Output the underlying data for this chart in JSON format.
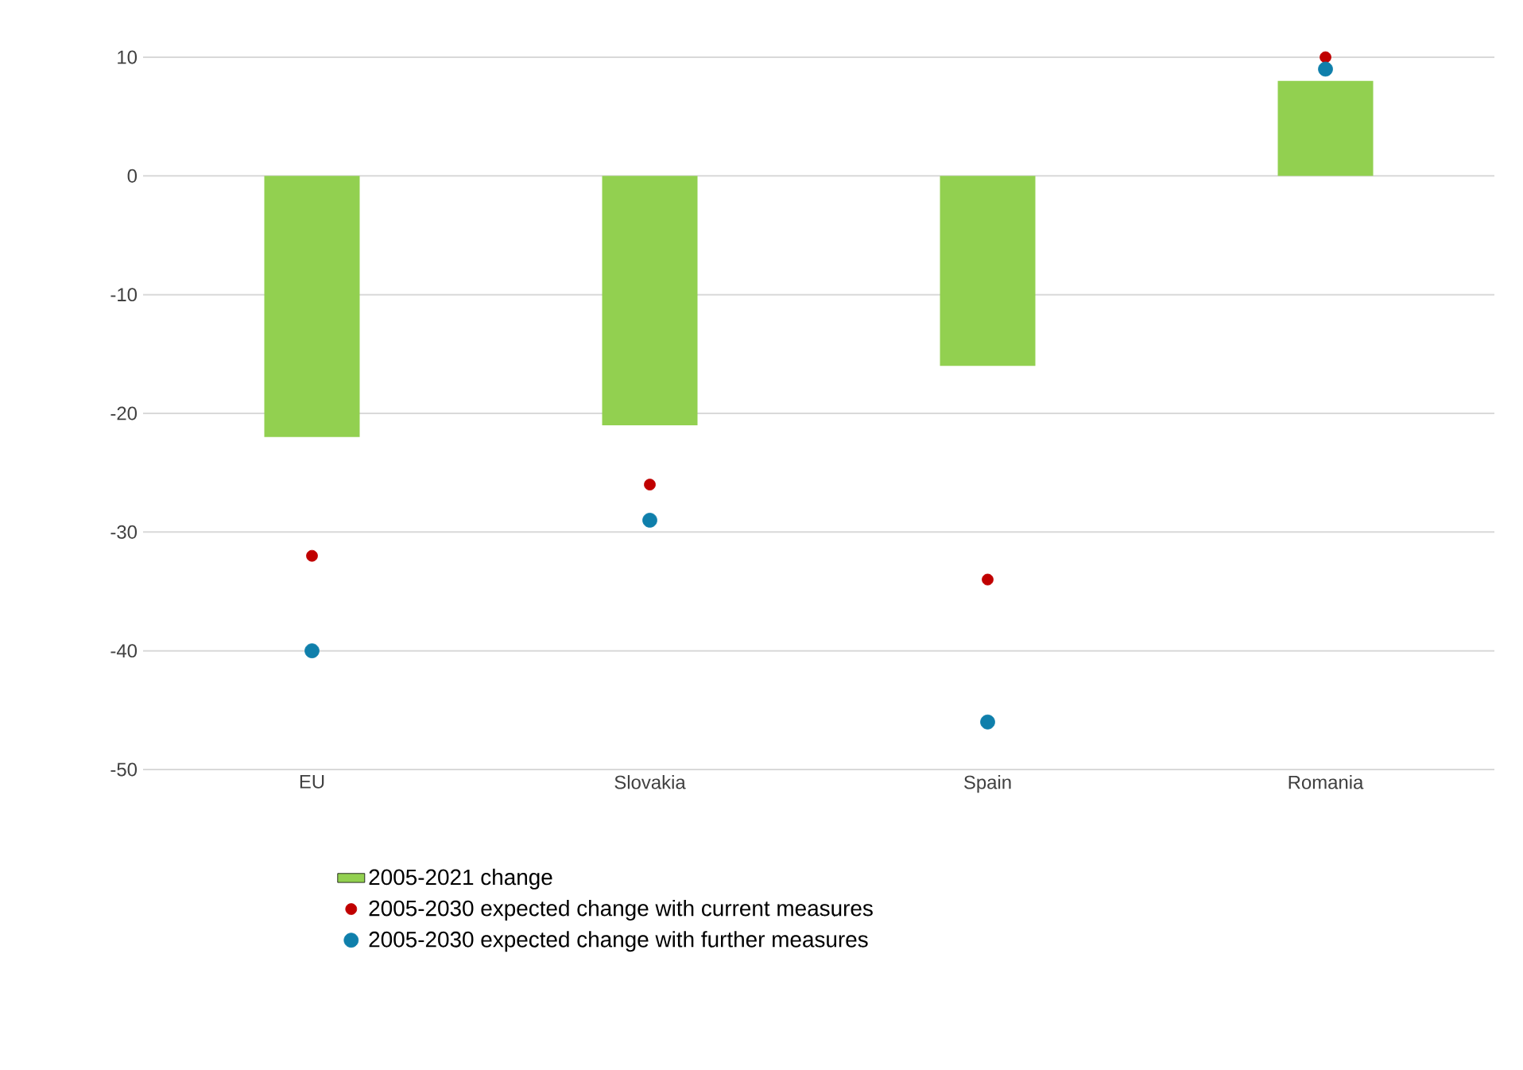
{
  "chart_data": {
    "type": "bar",
    "categories": [
      "EU",
      "Slovakia",
      "Spain",
      "Romania"
    ],
    "series": [
      {
        "name": "2005-2021 change",
        "color": "#92d050",
        "values": [
          -22,
          -21,
          -16,
          8
        ]
      },
      {
        "name": "2005-2030 expected change with current measures",
        "type": "scatter",
        "marker": "circle",
        "color": "#c00000",
        "x": [
          "EU",
          "Slovakia",
          "Spain",
          "Romania"
        ],
        "values": [
          -32,
          -26,
          -34,
          10
        ]
      },
      {
        "name": "2005-2030 expected change with further measures",
        "type": "scatter",
        "marker": "circle",
        "color": "#0f7fab",
        "x": [
          "EU",
          "Slovakia",
          "Spain",
          "Romania"
        ],
        "values": [
          -40,
          -29,
          -46,
          9
        ]
      }
    ],
    "ylim": [
      -50,
      10
    ],
    "yticks": [
      -50,
      -40,
      -30,
      -20,
      -10,
      0,
      10
    ],
    "grid": "y",
    "legend": "bottom"
  }
}
